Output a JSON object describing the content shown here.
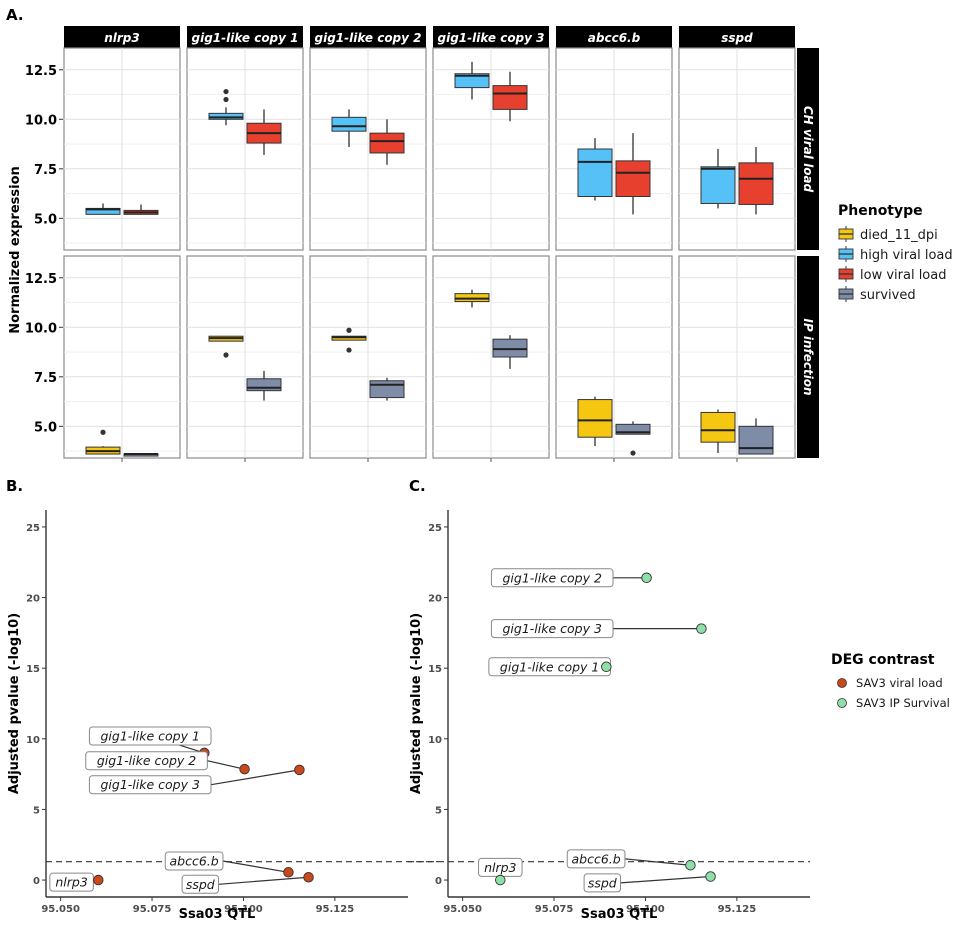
{
  "panel_letters": {
    "a": "A.",
    "b": "B.",
    "c": "C."
  },
  "colors": {
    "died_11_dpi": "#F5C710",
    "high viral load": "#56C1F7",
    "low viral load": "#E8402F",
    "survived": "#7F8CA8",
    "SAV3 viral load": "#C9491A",
    "SAV3 IP Survival": "#8FDFA8"
  },
  "chart_data": [
    {
      "type": "box",
      "id": "A",
      "ylabel": "Normalized expression",
      "yticks": [
        5.0,
        7.5,
        10.0,
        12.5
      ],
      "ytick_labels": [
        "5.0",
        "7.5",
        "10.0",
        "12.5"
      ],
      "ylim": [
        3.4,
        13.6
      ],
      "grid": true,
      "facet_columns": [
        "nlrp3",
        "gig1-like copy 1",
        "gig1-like copy 2",
        "gig1-like copy 3",
        "abcc6.b",
        "sspd"
      ],
      "facet_rows": [
        "CH viral load",
        "IP infection"
      ],
      "legend": {
        "title": "Phenotype",
        "position": "right",
        "entries": [
          "died_11_dpi",
          "high viral load",
          "low viral load",
          "survived"
        ]
      },
      "boxes": [
        {
          "row": 0,
          "col": 0,
          "group": "high viral load",
          "slot": 0,
          "lo": 5.2,
          "q1": 5.2,
          "med": 5.45,
          "q3": 5.5,
          "hi": 5.75,
          "outliers": []
        },
        {
          "row": 0,
          "col": 0,
          "group": "low viral load",
          "slot": 1,
          "lo": 5.2,
          "q1": 5.2,
          "med": 5.3,
          "q3": 5.4,
          "hi": 5.7,
          "outliers": []
        },
        {
          "row": 0,
          "col": 1,
          "group": "high viral load",
          "slot": 0,
          "lo": 9.7,
          "q1": 10.0,
          "med": 10.1,
          "q3": 10.3,
          "hi": 10.6,
          "outliers": [
            11.0,
            11.4
          ]
        },
        {
          "row": 0,
          "col": 1,
          "group": "low viral load",
          "slot": 1,
          "lo": 8.2,
          "q1": 8.8,
          "med": 9.3,
          "q3": 9.8,
          "hi": 10.5,
          "outliers": []
        },
        {
          "row": 0,
          "col": 2,
          "group": "high viral load",
          "slot": 0,
          "lo": 8.6,
          "q1": 9.4,
          "med": 9.65,
          "q3": 10.1,
          "hi": 10.5,
          "outliers": []
        },
        {
          "row": 0,
          "col": 2,
          "group": "low viral load",
          "slot": 1,
          "lo": 7.7,
          "q1": 8.3,
          "med": 8.9,
          "q3": 9.3,
          "hi": 10.0,
          "outliers": []
        },
        {
          "row": 0,
          "col": 3,
          "group": "high viral load",
          "slot": 0,
          "lo": 11.0,
          "q1": 11.6,
          "med": 12.2,
          "q3": 12.3,
          "hi": 12.9,
          "outliers": []
        },
        {
          "row": 0,
          "col": 3,
          "group": "low viral load",
          "slot": 1,
          "lo": 9.9,
          "q1": 10.5,
          "med": 11.3,
          "q3": 11.7,
          "hi": 12.4,
          "outliers": []
        },
        {
          "row": 0,
          "col": 4,
          "group": "high viral load",
          "slot": 0,
          "lo": 5.9,
          "q1": 6.1,
          "med": 7.85,
          "q3": 8.5,
          "hi": 9.05,
          "outliers": []
        },
        {
          "row": 0,
          "col": 4,
          "group": "low viral load",
          "slot": 1,
          "lo": 5.2,
          "q1": 6.1,
          "med": 7.3,
          "q3": 7.9,
          "hi": 9.3,
          "outliers": []
        },
        {
          "row": 0,
          "col": 5,
          "group": "high viral load",
          "slot": 0,
          "lo": 5.5,
          "q1": 5.75,
          "med": 7.5,
          "q3": 7.6,
          "hi": 8.5,
          "outliers": []
        },
        {
          "row": 0,
          "col": 5,
          "group": "low viral load",
          "slot": 1,
          "lo": 5.2,
          "q1": 5.7,
          "med": 7.0,
          "q3": 7.8,
          "hi": 8.6,
          "outliers": []
        },
        {
          "row": 1,
          "col": 0,
          "group": "died_11_dpi",
          "slot": 0,
          "lo": 3.6,
          "q1": 3.6,
          "med": 3.75,
          "q3": 3.95,
          "hi": 4.0,
          "outliers": [
            4.7
          ]
        },
        {
          "row": 1,
          "col": 0,
          "group": "survived",
          "slot": 1,
          "lo": 3.55,
          "q1": 3.55,
          "med": 3.6,
          "q3": 3.6,
          "hi": 3.6,
          "outliers": []
        },
        {
          "row": 1,
          "col": 1,
          "group": "died_11_dpi",
          "slot": 0,
          "lo": 9.3,
          "q1": 9.3,
          "med": 9.45,
          "q3": 9.55,
          "hi": 9.55,
          "outliers": [
            8.6
          ]
        },
        {
          "row": 1,
          "col": 1,
          "group": "survived",
          "slot": 1,
          "lo": 6.3,
          "q1": 6.8,
          "med": 6.95,
          "q3": 7.4,
          "hi": 7.8,
          "outliers": []
        },
        {
          "row": 1,
          "col": 2,
          "group": "died_11_dpi",
          "slot": 0,
          "lo": 9.35,
          "q1": 9.35,
          "med": 9.5,
          "q3": 9.55,
          "hi": 9.55,
          "outliers": [
            8.85,
            9.85
          ]
        },
        {
          "row": 1,
          "col": 2,
          "group": "survived",
          "slot": 1,
          "lo": 6.3,
          "q1": 6.45,
          "med": 7.1,
          "q3": 7.3,
          "hi": 7.45,
          "outliers": []
        },
        {
          "row": 1,
          "col": 3,
          "group": "died_11_dpi",
          "slot": 0,
          "lo": 11.0,
          "q1": 11.3,
          "med": 11.45,
          "q3": 11.7,
          "hi": 11.9,
          "outliers": []
        },
        {
          "row": 1,
          "col": 3,
          "group": "survived",
          "slot": 1,
          "lo": 7.9,
          "q1": 8.5,
          "med": 8.9,
          "q3": 9.4,
          "hi": 9.6,
          "outliers": []
        },
        {
          "row": 1,
          "col": 4,
          "group": "died_11_dpi",
          "slot": 0,
          "lo": 4.0,
          "q1": 4.45,
          "med": 5.3,
          "q3": 6.35,
          "hi": 6.5,
          "outliers": []
        },
        {
          "row": 1,
          "col": 4,
          "group": "survived",
          "slot": 1,
          "lo": 4.6,
          "q1": 4.6,
          "med": 4.7,
          "q3": 5.1,
          "hi": 5.25,
          "outliers": [
            3.65
          ]
        },
        {
          "row": 1,
          "col": 5,
          "group": "died_11_dpi",
          "slot": 0,
          "lo": 3.65,
          "q1": 4.2,
          "med": 4.8,
          "q3": 5.7,
          "hi": 5.85,
          "outliers": []
        },
        {
          "row": 1,
          "col": 5,
          "group": "survived",
          "slot": 1,
          "lo": 3.6,
          "q1": 3.6,
          "med": 3.9,
          "q3": 5.0,
          "hi": 5.4,
          "outliers": []
        }
      ]
    },
    {
      "type": "scatter",
      "id": "B",
      "xlabel": "Ssa03 QTL",
      "ylabel": "Adjusted pvalue (-log10)",
      "xlim": [
        95.046,
        95.145
      ],
      "ylim": [
        -1.2,
        26.2
      ],
      "xticks": [
        95.05,
        95.075,
        95.1,
        95.125
      ],
      "xtick_labels": [
        "95.050",
        "95.075",
        "95.100",
        "95.125"
      ],
      "yticks": [
        0,
        5,
        10,
        15,
        20,
        25
      ],
      "ytick_labels": [
        "0",
        "5",
        "10",
        "15",
        "20",
        "25"
      ],
      "threshold": 1.3,
      "series": "SAV3 viral load",
      "points": [
        {
          "gene": "nlrp3",
          "x": 95.0603,
          "y": 0.0,
          "label_x": 95.053,
          "label_y": -0.15
        },
        {
          "gene": "gig1-like copy 1",
          "x": 95.0893,
          "y": 9.0,
          "label_x": 95.0745,
          "label_y": 10.2
        },
        {
          "gene": "gig1-like copy 2",
          "x": 95.1003,
          "y": 7.85,
          "label_x": 95.0735,
          "label_y": 8.45
        },
        {
          "gene": "gig1-like copy 3",
          "x": 95.1153,
          "y": 7.8,
          "label_x": 95.0745,
          "label_y": 6.75
        },
        {
          "gene": "abcc6.b",
          "x": 95.1123,
          "y": 0.55,
          "label_x": 95.0865,
          "label_y": 1.35
        },
        {
          "gene": "sspd",
          "x": 95.1178,
          "y": 0.2,
          "label_x": 95.0882,
          "label_y": -0.3
        }
      ]
    },
    {
      "type": "scatter",
      "id": "C",
      "xlabel": "Ssa03 QTL",
      "ylabel": "Adjusted pvalue (-log10)",
      "xlim": [
        95.046,
        95.145
      ],
      "ylim": [
        -1.2,
        26.2
      ],
      "xticks": [
        95.05,
        95.075,
        95.1,
        95.125
      ],
      "xtick_labels": [
        "95.050",
        "95.075",
        "95.100",
        "95.125"
      ],
      "yticks": [
        0,
        5,
        10,
        15,
        20,
        25
      ],
      "ytick_labels": [
        "0",
        "5",
        "10",
        "15",
        "20",
        "25"
      ],
      "threshold": 1.3,
      "series": "SAV3 IP Survival",
      "points": [
        {
          "gene": "nlrp3",
          "x": 95.0603,
          "y": 0.0,
          "label_x": 95.0603,
          "label_y": 0.9
        },
        {
          "gene": "gig1-like copy 1",
          "x": 95.0893,
          "y": 15.1,
          "label_x": 95.0738,
          "label_y": 15.1
        },
        {
          "gene": "gig1-like copy 2",
          "x": 95.1003,
          "y": 21.4,
          "label_x": 95.0745,
          "label_y": 21.4
        },
        {
          "gene": "gig1-like copy 3",
          "x": 95.1153,
          "y": 17.8,
          "label_x": 95.0745,
          "label_y": 17.8
        },
        {
          "gene": "abcc6.b",
          "x": 95.1123,
          "y": 1.05,
          "label_x": 95.0865,
          "label_y": 1.5
        },
        {
          "gene": "sspd",
          "x": 95.1178,
          "y": 0.25,
          "label_x": 95.0882,
          "label_y": -0.2
        }
      ]
    }
  ],
  "legend_b": {
    "title": "DEG contrast",
    "position": "right",
    "entries": [
      "SAV3 viral load",
      "SAV3 IP Survival"
    ]
  }
}
